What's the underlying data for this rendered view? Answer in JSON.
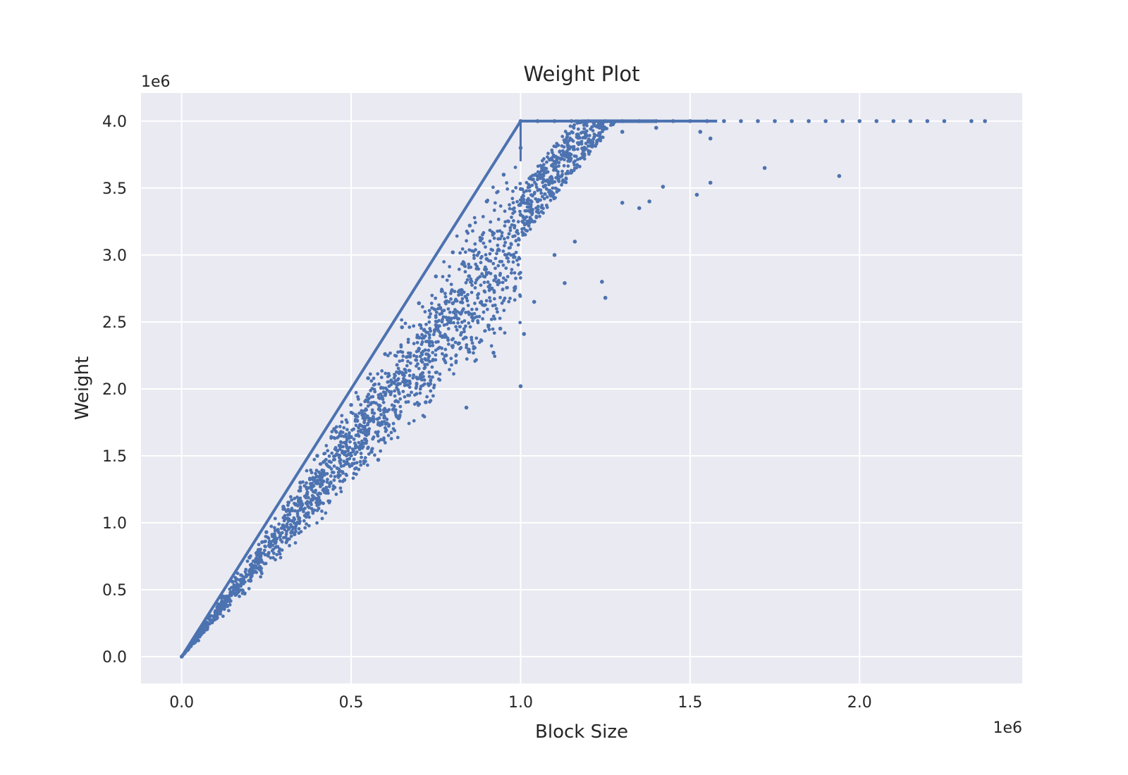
{
  "chart_data": {
    "type": "scatter",
    "title": "Weight Plot",
    "xlabel": "Block Size",
    "ylabel": "Weight",
    "x_offset_label": "1e6",
    "y_offset_label": "1e6",
    "xlim": [
      -120000,
      2480000
    ],
    "ylim": [
      -200000,
      4210000
    ],
    "xticks": [
      0,
      500000,
      1000000,
      1500000,
      2000000
    ],
    "xtick_labels": [
      "0.0",
      "0.5",
      "1.0",
      "1.5",
      "2.0"
    ],
    "yticks": [
      0,
      500000,
      1000000,
      1500000,
      2000000,
      2500000,
      3000000,
      3500000,
      4000000
    ],
    "ytick_labels": [
      "0.0",
      "0.5",
      "1.0",
      "1.5",
      "2.0",
      "2.5",
      "3.0",
      "3.5",
      "4.0"
    ],
    "grid": true,
    "style": {
      "background": "#eaeaf2",
      "grid_color": "#ffffff",
      "marker_color": "#4c72b0"
    },
    "series": [
      {
        "points": [
          [
            0,
            0
          ],
          [
            20000,
            70000
          ],
          [
            50000,
            190000
          ],
          [
            80000,
            300000
          ],
          [
            120000,
            450000
          ],
          [
            150000,
            560000
          ],
          [
            200000,
            740000
          ],
          [
            250000,
            930000
          ],
          [
            300000,
            1120000
          ],
          [
            350000,
            1300000
          ],
          [
            400000,
            1500000
          ],
          [
            450000,
            1700000
          ],
          [
            500000,
            1880000
          ],
          [
            550000,
            2080000
          ],
          [
            600000,
            2260000
          ],
          [
            650000,
            2460000
          ],
          [
            700000,
            2640000
          ],
          [
            750000,
            2840000
          ],
          [
            800000,
            3020000
          ],
          [
            850000,
            3220000
          ],
          [
            900000,
            3400000
          ],
          [
            950000,
            3600000
          ],
          [
            1000000,
            3800000
          ],
          [
            100000,
            320000
          ],
          [
            200000,
            640000
          ],
          [
            300000,
            980000
          ],
          [
            400000,
            1310000
          ],
          [
            500000,
            1640000
          ],
          [
            600000,
            1970000
          ],
          [
            700000,
            2300000
          ],
          [
            800000,
            2640000
          ],
          [
            900000,
            2970000
          ],
          [
            1000000,
            3300000
          ],
          [
            1100000,
            3640000
          ],
          [
            1200000,
            3850000
          ],
          [
            1300000,
            3920000
          ],
          [
            1400000,
            3950000
          ],
          [
            280000,
            880000
          ],
          [
            380000,
            1150000
          ],
          [
            480000,
            1320000
          ],
          [
            560000,
            1530000
          ],
          [
            580000,
            1470000
          ],
          [
            640000,
            1780000
          ],
          [
            700000,
            2080000
          ],
          [
            720000,
            1900000
          ],
          [
            780000,
            2250000
          ],
          [
            840000,
            1860000
          ],
          [
            920000,
            2270000
          ],
          [
            940000,
            2450000
          ],
          [
            1000000,
            2020000
          ],
          [
            1010000,
            2410000
          ],
          [
            1040000,
            2650000
          ],
          [
            1100000,
            3000000
          ],
          [
            1130000,
            2790000
          ],
          [
            1160000,
            3100000
          ],
          [
            1240000,
            2800000
          ],
          [
            1250000,
            2680000
          ],
          [
            1300000,
            3390000
          ],
          [
            1350000,
            3350000
          ],
          [
            1380000,
            3400000
          ],
          [
            1420000,
            3510000
          ],
          [
            1520000,
            3450000
          ],
          [
            1560000,
            3540000
          ],
          [
            1720000,
            3650000
          ],
          [
            1940000,
            3590000
          ],
          [
            1560000,
            3870000
          ],
          [
            1530000,
            3920000
          ],
          [
            1000000,
            4000000
          ],
          [
            1050000,
            4000000
          ],
          [
            1100000,
            4000000
          ],
          [
            1150000,
            4000000
          ],
          [
            1200000,
            4000000
          ],
          [
            1250000,
            4000000
          ],
          [
            1300000,
            4000000
          ],
          [
            1350000,
            4000000
          ],
          [
            1400000,
            4000000
          ],
          [
            1450000,
            4000000
          ],
          [
            1500000,
            4000000
          ],
          [
            1550000,
            4000000
          ],
          [
            1600000,
            4000000
          ],
          [
            1650000,
            4000000
          ],
          [
            1700000,
            4000000
          ],
          [
            1750000,
            4000000
          ],
          [
            1800000,
            4000000
          ],
          [
            1850000,
            4000000
          ],
          [
            1900000,
            4000000
          ],
          [
            1950000,
            4000000
          ],
          [
            2000000,
            4000000
          ],
          [
            2050000,
            4000000
          ],
          [
            2100000,
            4000000
          ],
          [
            2150000,
            4000000
          ],
          [
            2200000,
            4000000
          ],
          [
            2250000,
            4000000
          ],
          [
            2330000,
            4000000
          ],
          [
            2370000,
            4000000
          ]
        ]
      }
    ]
  }
}
